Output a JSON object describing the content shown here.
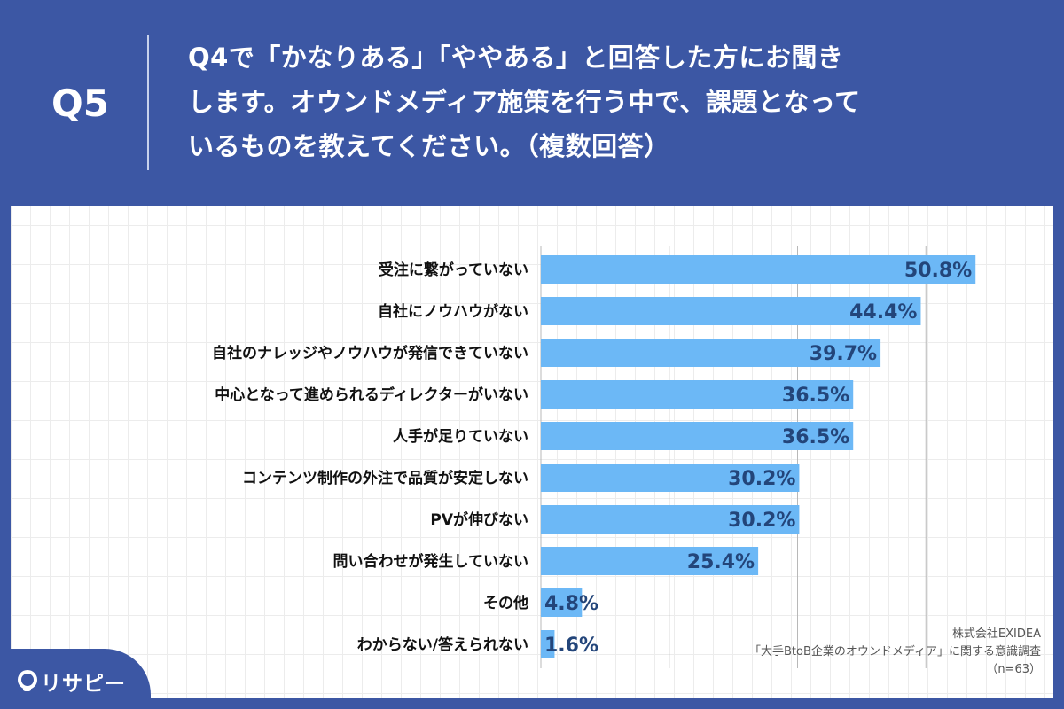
{
  "header": {
    "question_number": "Q5",
    "question_text": "Q4で「かなりある」「ややある」と回答した方にお聞き\nします。オウンドメディア施策を行う中で、課題となって\nいるものを教えてください。（複数回答）"
  },
  "chart_data": {
    "type": "bar",
    "orientation": "horizontal",
    "categories": [
      "受注に繋がっていない",
      "自社にノウハウがない",
      "自社のナレッジやノウハウが発信できていない",
      "中心となって進められるディレクターがいない",
      "人手が足りていない",
      "コンテンツ制作の外注で品質が安定しない",
      "PVが伸びない",
      "問い合わせが発生していない",
      "その他",
      "わからない/答えられない"
    ],
    "values": [
      50.8,
      44.4,
      39.7,
      36.5,
      36.5,
      30.2,
      30.2,
      25.4,
      4.8,
      1.6
    ],
    "value_labels": [
      "50.8%",
      "44.4%",
      "39.7%",
      "36.5%",
      "36.5%",
      "30.2%",
      "30.2%",
      "25.4%",
      "4.8%",
      "1.6%"
    ],
    "xlim": [
      0,
      60
    ],
    "grid_x_at": [
      15,
      30,
      45,
      60
    ],
    "bar_color": "#6cb8f6",
    "label_color": "#23457a"
  },
  "source": {
    "company": "株式会社EXIDEA",
    "survey": "「大手BtoB企業のオウンドメディア」に関する意識調査",
    "sample": "（n=63）"
  },
  "logo": {
    "icon": "location-pin-icon",
    "text": "リサピー"
  }
}
